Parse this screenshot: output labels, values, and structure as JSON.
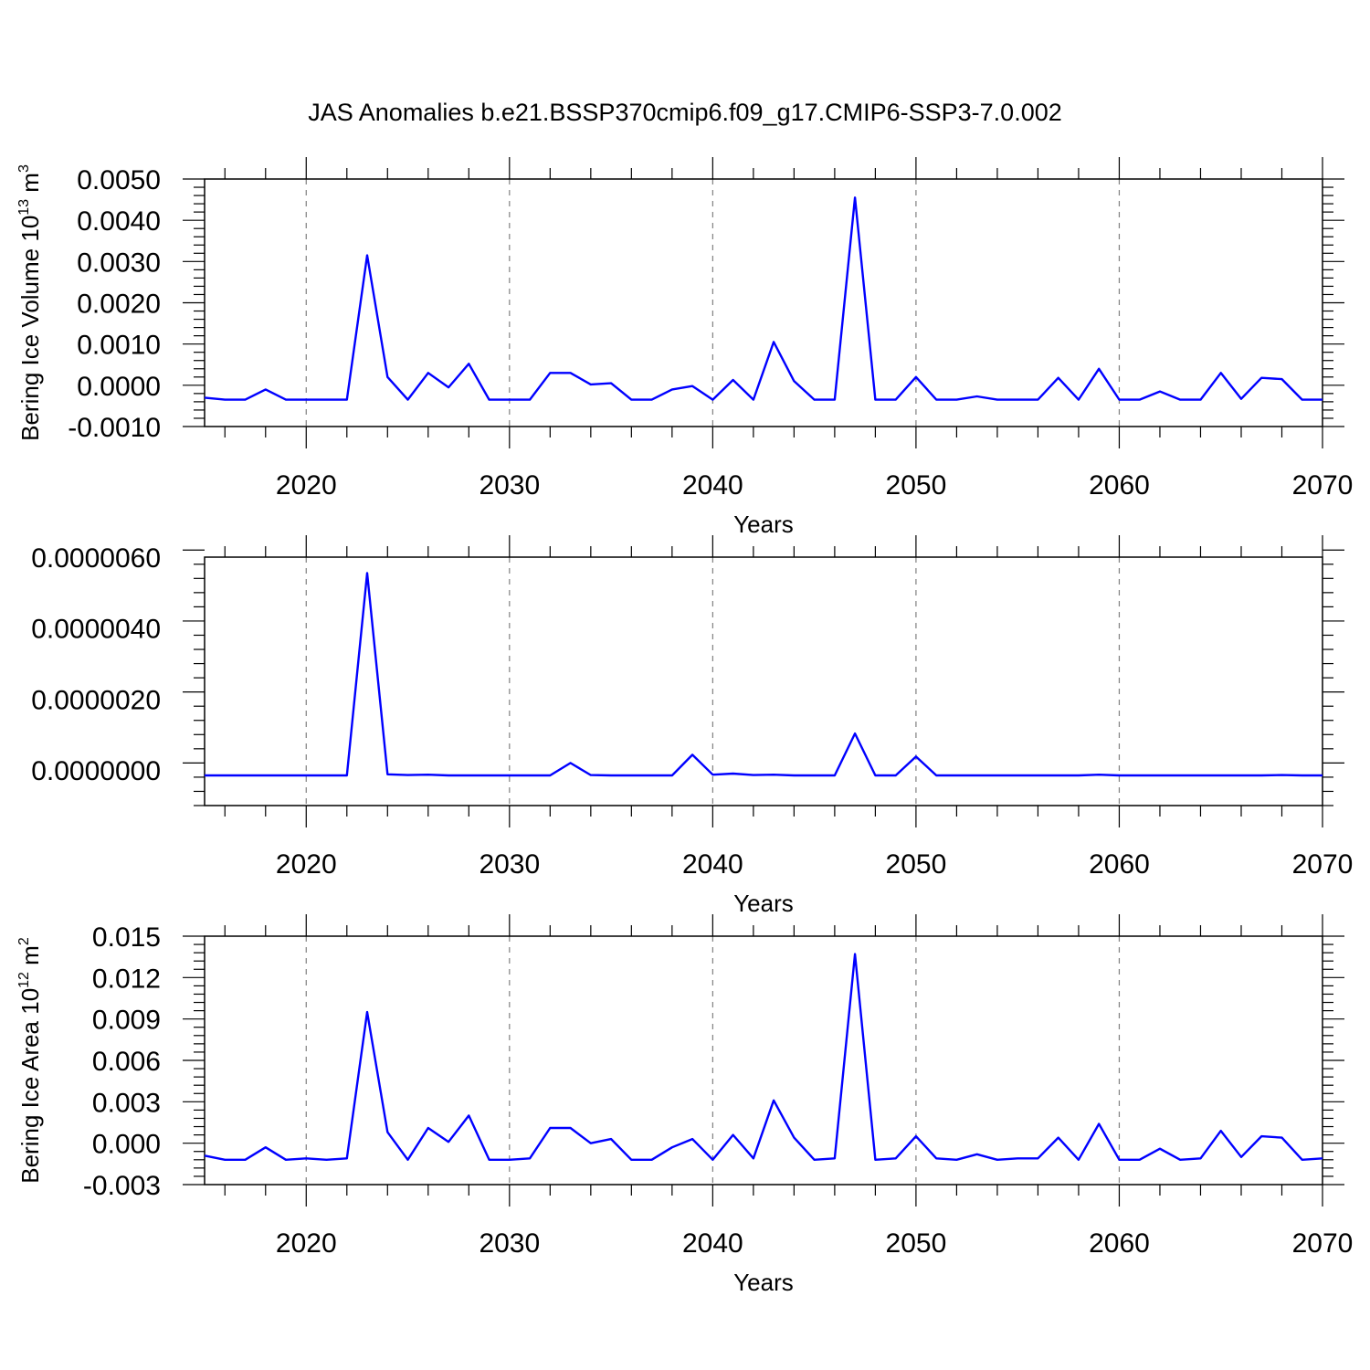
{
  "title": "JAS Anomalies b.e21.BSSP370cmip6.f09_g17.CMIP6-SSP3-7.0.002",
  "line_color": "#0000ff",
  "chart_data": [
    {
      "type": "line",
      "xlabel": "Years",
      "ylabel": "Bering Ice Volume 10",
      "ylabel_exp": "13",
      "ylabel_unit": " m",
      "ylabel_unit_exp": "3",
      "xlim": [
        2015,
        2070
      ],
      "ylim": [
        -0.001,
        0.005
      ],
      "yticks": [
        -0.001,
        0.0,
        0.001,
        0.002,
        0.003,
        0.004,
        0.005
      ],
      "ytick_labels": [
        "-0.0010",
        "0.0000",
        "0.0010",
        "0.0020",
        "0.0030",
        "0.0040",
        "0.0050"
      ],
      "xticks": [
        2020,
        2030,
        2040,
        2050,
        2060,
        2070
      ],
      "xtick_labels": [
        "2020",
        "2030",
        "2040",
        "2050",
        "2060",
        "2070"
      ],
      "x": [
        2015,
        2016,
        2017,
        2018,
        2019,
        2020,
        2021,
        2022,
        2023,
        2024,
        2025,
        2026,
        2027,
        2028,
        2029,
        2030,
        2031,
        2032,
        2033,
        2034,
        2035,
        2036,
        2037,
        2038,
        2039,
        2040,
        2041,
        2042,
        2043,
        2044,
        2045,
        2046,
        2047,
        2048,
        2049,
        2050,
        2051,
        2052,
        2053,
        2054,
        2055,
        2056,
        2057,
        2058,
        2059,
        2060,
        2061,
        2062,
        2063,
        2064,
        2065,
        2066,
        2067,
        2068,
        2069,
        2070
      ],
      "values": [
        -0.0003,
        -0.00035,
        -0.00035,
        -0.0001,
        -0.00035,
        -0.00035,
        -0.00035,
        -0.00035,
        0.00315,
        0.0002,
        -0.00035,
        0.0003,
        -5e-05,
        0.00052,
        -0.00035,
        -0.00035,
        -0.00035,
        0.0003,
        0.0003,
        2e-05,
        5e-05,
        -0.00035,
        -0.00035,
        -0.0001,
        -2e-05,
        -0.00035,
        0.00013,
        -0.00035,
        0.00105,
        0.0001,
        -0.00035,
        -0.00035,
        0.00455,
        -0.00035,
        -0.00035,
        0.0002,
        -0.00035,
        -0.00035,
        -0.00027,
        -0.00035,
        -0.00035,
        -0.00035,
        0.00018,
        -0.00035,
        0.0004,
        -0.00035,
        -0.00035,
        -0.00015,
        -0.00035,
        -0.00035,
        0.0003,
        -0.00033,
        0.00018,
        0.00015,
        -0.00035,
        -0.00035
      ],
      "grid": "vertical dashed"
    },
    {
      "type": "line",
      "xlabel": "Years",
      "ylabel": "",
      "xlim": [
        2015,
        2070
      ],
      "ylim": [
        -1e-06,
        6e-06
      ],
      "yticks": [
        0.0,
        2e-06,
        4e-06,
        6e-06
      ],
      "ytick_labels": [
        "0.0000000",
        "0.0000020",
        "0.0000040",
        "0.0000060"
      ],
      "xticks": [
        2020,
        2030,
        2040,
        2050,
        2060,
        2070
      ],
      "xtick_labels": [
        "2020",
        "2030",
        "2040",
        "2050",
        "2060",
        "2070"
      ],
      "x": [
        2015,
        2016,
        2017,
        2018,
        2019,
        2020,
        2021,
        2022,
        2023,
        2024,
        2025,
        2026,
        2027,
        2028,
        2029,
        2030,
        2031,
        2032,
        2033,
        2034,
        2035,
        2036,
        2037,
        2038,
        2039,
        2040,
        2041,
        2042,
        2043,
        2044,
        2045,
        2046,
        2047,
        2048,
        2049,
        2050,
        2051,
        2052,
        2053,
        2054,
        2055,
        2056,
        2057,
        2058,
        2059,
        2060,
        2061,
        2062,
        2063,
        2064,
        2065,
        2066,
        2067,
        2068,
        2069,
        2070
      ],
      "values": [
        -1.5e-07,
        -1.5e-07,
        -1.5e-07,
        -1.5e-07,
        -1.5e-07,
        -1.5e-07,
        -1.5e-07,
        -1.5e-07,
        5.55e-06,
        -1.2e-07,
        -1.4e-07,
        -1.3e-07,
        -1.5e-07,
        -1.5e-07,
        -1.5e-07,
        -1.5e-07,
        -1.5e-07,
        -1.5e-07,
        2e-07,
        -1.4e-07,
        -1.5e-07,
        -1.5e-07,
        -1.5e-07,
        -1.5e-07,
        4.3e-07,
        -1.3e-07,
        -1e-07,
        -1.4e-07,
        -1.3e-07,
        -1.5e-07,
        -1.5e-07,
        -1.5e-07,
        1.03e-06,
        -1.5e-07,
        -1.5e-07,
        3.8e-07,
        -1.5e-07,
        -1.5e-07,
        -1.5e-07,
        -1.5e-07,
        -1.5e-07,
        -1.5e-07,
        -1.5e-07,
        -1.5e-07,
        -1.3e-07,
        -1.5e-07,
        -1.5e-07,
        -1.5e-07,
        -1.5e-07,
        -1.5e-07,
        -1.5e-07,
        -1.5e-07,
        -1.5e-07,
        -1.4e-07,
        -1.5e-07,
        -1.5e-07
      ],
      "grid": "vertical dashed"
    },
    {
      "type": "line",
      "xlabel": "Years",
      "ylabel": "Bering Ice Area 10",
      "ylabel_exp": "12",
      "ylabel_unit": " m",
      "ylabel_unit_exp": "2",
      "xlim": [
        2015,
        2070
      ],
      "ylim": [
        -0.003,
        0.015
      ],
      "yticks": [
        -0.003,
        0.0,
        0.003,
        0.006,
        0.009,
        0.012,
        0.015
      ],
      "ytick_labels": [
        "-0.003",
        "0.000",
        "0.003",
        "0.006",
        "0.009",
        "0.012",
        "0.015"
      ],
      "xticks": [
        2020,
        2030,
        2040,
        2050,
        2060,
        2070
      ],
      "xtick_labels": [
        "2020",
        "2030",
        "2040",
        "2050",
        "2060",
        "2070"
      ],
      "x": [
        2015,
        2016,
        2017,
        2018,
        2019,
        2020,
        2021,
        2022,
        2023,
        2024,
        2025,
        2026,
        2027,
        2028,
        2029,
        2030,
        2031,
        2032,
        2033,
        2034,
        2035,
        2036,
        2037,
        2038,
        2039,
        2040,
        2041,
        2042,
        2043,
        2044,
        2045,
        2046,
        2047,
        2048,
        2049,
        2050,
        2051,
        2052,
        2053,
        2054,
        2055,
        2056,
        2057,
        2058,
        2059,
        2060,
        2061,
        2062,
        2063,
        2064,
        2065,
        2066,
        2067,
        2068,
        2069,
        2070
      ],
      "values": [
        -0.0009,
        -0.0012,
        -0.0012,
        -0.0003,
        -0.0012,
        -0.0011,
        -0.0012,
        -0.0011,
        0.0095,
        0.0008,
        -0.0012,
        0.0011,
        0.0001,
        0.002,
        -0.0012,
        -0.0012,
        -0.0011,
        0.0011,
        0.0011,
        0.0,
        0.0003,
        -0.0012,
        -0.0012,
        -0.0003,
        0.0003,
        -0.0012,
        0.0006,
        -0.0011,
        0.0031,
        0.0004,
        -0.0012,
        -0.0011,
        0.0137,
        -0.0012,
        -0.0011,
        0.0005,
        -0.0011,
        -0.0012,
        -0.0008,
        -0.0012,
        -0.0011,
        -0.0011,
        0.0004,
        -0.0012,
        0.0014,
        -0.0012,
        -0.0012,
        -0.0004,
        -0.0012,
        -0.0011,
        0.0009,
        -0.001,
        0.0005,
        0.0004,
        -0.0012,
        -0.0011
      ],
      "grid": "vertical dashed"
    }
  ]
}
